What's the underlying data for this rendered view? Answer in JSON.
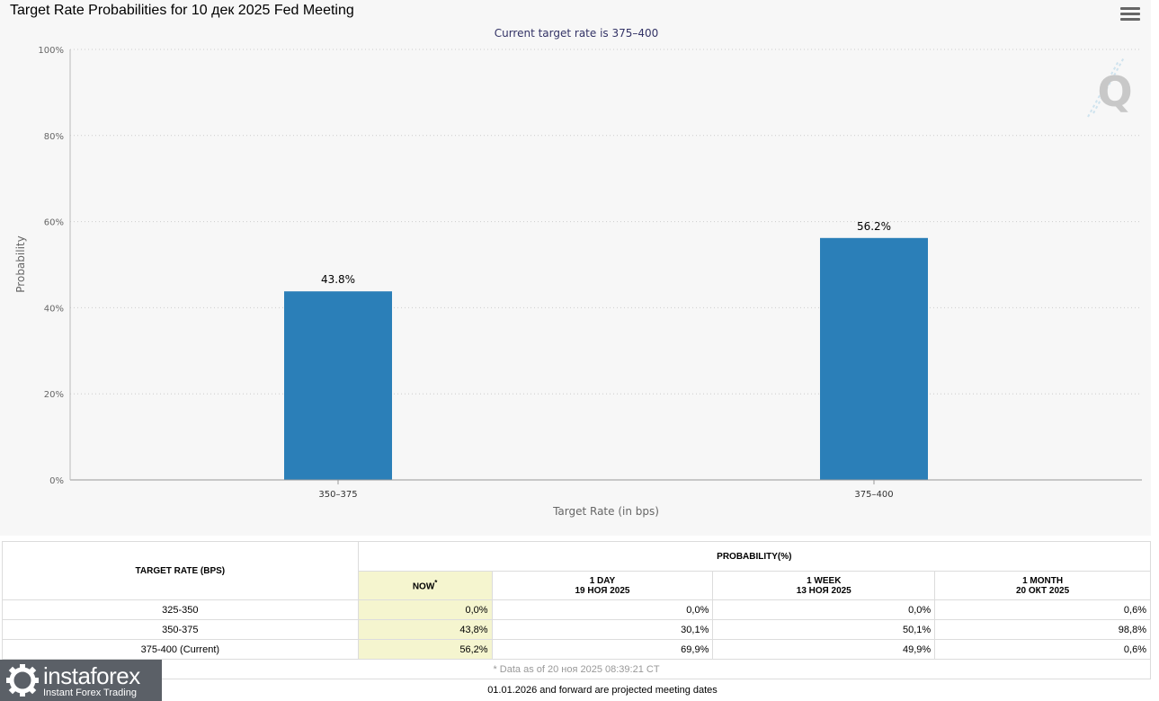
{
  "header": {
    "title": "Target Rate Probabilities for 10 дек 2025 Fed Meeting"
  },
  "chart_data": {
    "type": "bar",
    "title": "Target Rate Probabilities for 10 дек 2025 Fed Meeting",
    "subtitle": "Current target rate is 375–400",
    "categories": [
      "350–375",
      "375–400"
    ],
    "values": [
      43.8,
      56.2
    ],
    "data_labels": [
      "43.8%",
      "56.2%"
    ],
    "xlabel": "Target Rate (in bps)",
    "ylabel": "Probability",
    "ylim": [
      0,
      100
    ],
    "yticks": [
      0,
      20,
      40,
      60,
      80,
      100
    ],
    "ytick_labels": [
      "0%",
      "20%",
      "40%",
      "60%",
      "80%",
      "100%"
    ],
    "grid": true,
    "bar_color": "#2b7fb8",
    "watermark_letter": "Q"
  },
  "table": {
    "target_rate_header": "TARGET RATE (BPS)",
    "probability_header": "PROBABILITY(%)",
    "columns": [
      {
        "line1": "NOW",
        "line2": "",
        "marker": "*"
      },
      {
        "line1": "1 DAY",
        "line2": "19 НОЯ 2025",
        "marker": ""
      },
      {
        "line1": "1 WEEK",
        "line2": "13 НОЯ 2025",
        "marker": ""
      },
      {
        "line1": "1 MONTH",
        "line2": "20 ОКТ 2025",
        "marker": ""
      }
    ],
    "rows": [
      {
        "rate": "325-350",
        "values": [
          "0,0%",
          "0,0%",
          "0,0%",
          "0,6%"
        ]
      },
      {
        "rate": "350-375",
        "values": [
          "43,8%",
          "30,1%",
          "50,1%",
          "98,8%"
        ]
      },
      {
        "rate": "375-400 (Current)",
        "values": [
          "56,2%",
          "69,9%",
          "49,9%",
          "0,6%"
        ]
      }
    ],
    "footnote": "* Data as of 20 ноя 2025 08:39:21 CT"
  },
  "bottom_note": "01.01.2026 and forward are projected meeting dates",
  "watermark": {
    "name": "instaforex",
    "tagline": "Instant Forex Trading"
  }
}
